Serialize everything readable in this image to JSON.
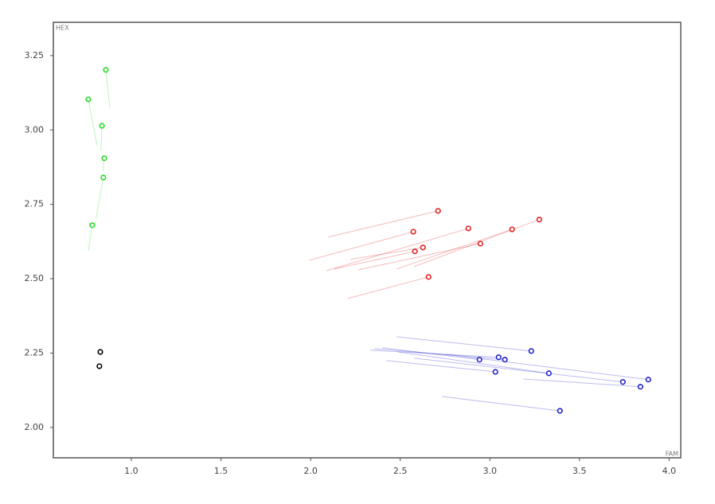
{
  "chart_data": {
    "type": "scatter",
    "x_label": "FAM",
    "y_label": "HEX",
    "xlim": [
      0.565,
      4.065
    ],
    "ylim": [
      1.898,
      3.362
    ],
    "xticks": [
      {
        "value": 1,
        "label": "1.0"
      },
      {
        "value": 1.5,
        "label": "1.5"
      },
      {
        "value": 2,
        "label": "2.0"
      },
      {
        "value": 2.5,
        "label": "2.5"
      },
      {
        "value": 3,
        "label": "3.0"
      },
      {
        "value": 3.5,
        "label": "3.5"
      },
      {
        "value": 4,
        "label": "4.0"
      }
    ],
    "yticks": [
      {
        "value": 2,
        "label": "2.00"
      },
      {
        "value": 2.25,
        "label": "2.25"
      },
      {
        "value": 2.5,
        "label": "2.50"
      },
      {
        "value": 2.75,
        "label": "2.75"
      },
      {
        "value": 3,
        "label": "3.00"
      },
      {
        "value": 3.25,
        "label": "3.25"
      }
    ],
    "grid": false,
    "series": [
      {
        "color": "#22dd22",
        "x": [
          0.858,
          0.76,
          0.836,
          0.849,
          0.844,
          0.782
        ],
        "values": [
          3.202,
          3.103,
          3.014,
          2.905,
          2.84,
          2.68
        ],
        "trail_x": [
          0.88,
          0.809,
          0.831,
          0.84,
          0.802,
          0.76
        ],
        "trail_y": [
          3.075,
          2.948,
          2.93,
          2.86,
          2.7,
          2.594
        ]
      },
      {
        "color": "#000000",
        "x": [
          0.827,
          0.822
        ],
        "values": [
          2.254,
          2.206
        ]
      },
      {
        "color": "#e02020",
        "x": [
          2.711,
          2.573,
          2.88,
          2.627,
          2.582,
          2.947,
          3.124,
          3.276,
          2.658
        ],
        "values": [
          2.728,
          2.658,
          2.669,
          2.605,
          2.592,
          2.618,
          2.666,
          2.699,
          2.506
        ],
        "trail_x": [
          2.098,
          1.991,
          2.089,
          2.222,
          2.133,
          2.267,
          2.48,
          2.578,
          2.209
        ],
        "trail_y": [
          2.64,
          2.562,
          2.527,
          2.565,
          2.533,
          2.53,
          2.533,
          2.541,
          2.434
        ]
      },
      {
        "color": "#2020c8",
        "x": [
          3.231,
          3.049,
          2.942,
          3.084,
          3.031,
          3.329,
          3.742,
          3.884,
          3.84,
          3.391
        ],
        "values": [
          2.257,
          2.236,
          2.228,
          2.228,
          2.187,
          2.182,
          2.153,
          2.161,
          2.137,
          2.056
        ],
        "trail_x": [
          2.48,
          2.333,
          2.4,
          2.356,
          2.422,
          2.489,
          2.578,
          2.756,
          3.187,
          2.733
        ],
        "trail_y": [
          2.305,
          2.26,
          2.268,
          2.265,
          2.225,
          2.254,
          2.233,
          2.246,
          2.163,
          2.104
        ]
      }
    ]
  }
}
